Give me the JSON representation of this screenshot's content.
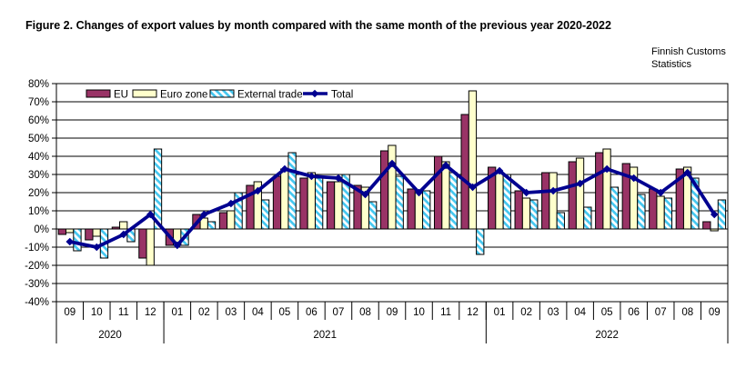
{
  "title": "Figure 2. Changes of export values by month compared with the same month of the previous year 2020-2022",
  "source": {
    "line1": "Finnish Customs",
    "line2": "Statistics"
  },
  "chart_data": {
    "type": "bar",
    "title": "Figure 2. Changes of export values by month compared with the same month of the previous year 2020-2022",
    "categories": [
      "09",
      "10",
      "11",
      "12",
      "01",
      "02",
      "03",
      "04",
      "05",
      "06",
      "07",
      "08",
      "09",
      "10",
      "11",
      "12",
      "01",
      "02",
      "03",
      "04",
      "05",
      "06",
      "07",
      "08",
      "09"
    ],
    "year_groups": [
      {
        "label": "2020",
        "months": 4
      },
      {
        "label": "2021",
        "months": 12
      },
      {
        "label": "2022",
        "months": 9
      }
    ],
    "series": [
      {
        "name": "EU",
        "type": "bar",
        "color": "#993366",
        "values": [
          -3,
          -6,
          1,
          -16,
          -9,
          8,
          9,
          24,
          29,
          28,
          26,
          24,
          43,
          22,
          40,
          63,
          34,
          21,
          31,
          37,
          42,
          36,
          22,
          33,
          4
        ]
      },
      {
        "name": "Euro zone",
        "type": "bar",
        "color": "#FFFFCC",
        "values": [
          -2,
          -4,
          4,
          -20,
          -9,
          6,
          10,
          26,
          33,
          31,
          26,
          23,
          46,
          20,
          37,
          76,
          31,
          17,
          31,
          39,
          44,
          34,
          18,
          34,
          -1
        ]
      },
      {
        "name": "External trade",
        "type": "bar",
        "color": "#44C7F0",
        "pattern": "diagonal-hatch",
        "values": [
          -12,
          -16,
          -7,
          44,
          -9,
          4,
          20,
          16,
          42,
          28,
          30,
          15,
          29,
          21,
          31,
          -14,
          30,
          16,
          9,
          12,
          23,
          19,
          17,
          28,
          16
        ]
      },
      {
        "name": "Total",
        "type": "line",
        "color": "#000090",
        "marker": "diamond",
        "values": [
          -7,
          -10,
          -3,
          8,
          -9,
          8,
          14,
          21,
          33,
          29,
          28,
          19,
          36,
          20,
          35,
          23,
          32,
          20,
          21,
          25,
          33,
          28,
          20,
          31,
          8
        ]
      }
    ],
    "ylabel_format": "percent",
    "ylim": [
      -40,
      80
    ],
    "ytick_step": 10,
    "grid": true,
    "legend_position": "top-inside"
  }
}
